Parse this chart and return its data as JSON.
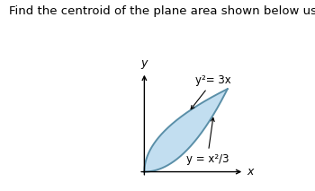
{
  "title": "Find the centroid of the plane area shown below using integration.",
  "title_fontsize": 9.5,
  "title_color": "#000000",
  "background_color": "#ffffff",
  "fill_color": "#b8d9ee",
  "fill_alpha": 0.85,
  "edge_color": "#5a8fa8",
  "edge_lw": 1.4,
  "curve1_label": "y²= 3x",
  "curve2_label": "y = x²/3",
  "axis_label_x": "x",
  "axis_label_y": "y",
  "x_intersect": 3,
  "y_intersect": 3,
  "num_points": 400,
  "xlim": [
    -0.35,
    3.8
  ],
  "ylim": [
    -0.35,
    3.8
  ],
  "figsize": [
    3.5,
    2.13
  ],
  "dpi": 100
}
